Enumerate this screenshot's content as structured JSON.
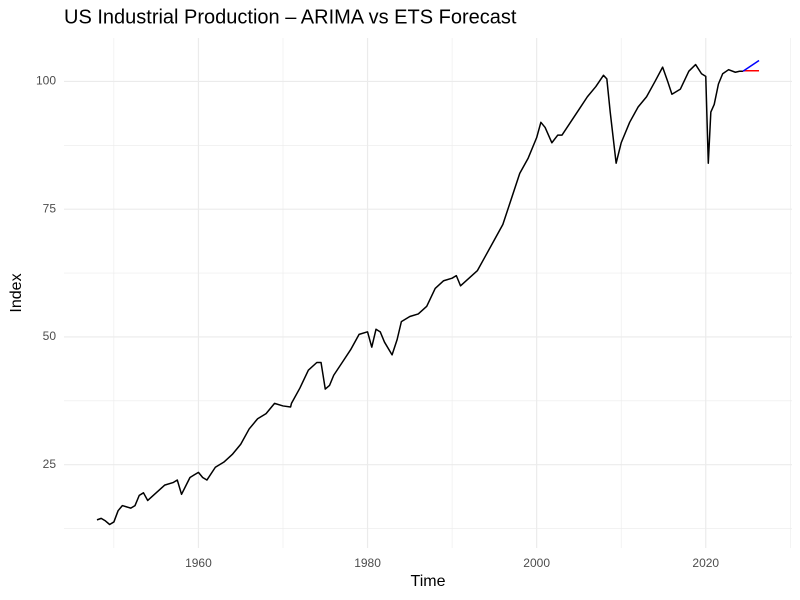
{
  "chart_data": {
    "type": "line",
    "title": "US Industrial Production – ARIMA vs ETS Forecast",
    "x_label": "Time",
    "y_label": "Index",
    "xlim": [
      1944.1,
      2030.2
    ],
    "ylim": [
      8.7,
      108.5
    ],
    "xticks": [
      1960,
      1980,
      2000,
      2020
    ],
    "yticks": [
      25,
      50,
      75,
      100
    ],
    "x_minor_grid": [
      1950,
      1970,
      1990,
      2010,
      2030
    ],
    "y_minor_grid": [
      12.5,
      37.5,
      62.5,
      87.5
    ],
    "grid": true,
    "series": [
      {
        "color": "#000000",
        "x": [
          1948.0,
          1948.5,
          1949.0,
          1949.5,
          1950.0,
          1950.5,
          1951.0,
          1952.0,
          1952.5,
          1953.0,
          1953.5,
          1954.0,
          1955.0,
          1956.0,
          1957.0,
          1957.5,
          1958.0,
          1959.0,
          1959.5,
          1960.0,
          1960.5,
          1961.0,
          1962.0,
          1963.0,
          1964.0,
          1965.0,
          1966.0,
          1967.0,
          1968.0,
          1969.0,
          1970.0,
          1970.9,
          1971.0,
          1972.0,
          1973.0,
          1974.0,
          1974.5,
          1975.0,
          1975.5,
          1976.0,
          1977.0,
          1978.0,
          1979.0,
          1980.0,
          1980.5,
          1981.0,
          1981.5,
          1982.0,
          1982.9,
          1983.5,
          1984.0,
          1985.0,
          1986.0,
          1987.0,
          1988.0,
          1989.0,
          1990.0,
          1990.5,
          1991.0,
          1992.0,
          1993.0,
          1994.0,
          1995.0,
          1996.0,
          1997.0,
          1998.0,
          1999.0,
          2000.0,
          2000.5,
          2001.0,
          2001.8,
          2002.5,
          2003.0,
          2004.0,
          2005.0,
          2006.0,
          2007.0,
          2007.9,
          2008.3,
          2008.7,
          2009.4,
          2010.0,
          2011.0,
          2012.0,
          2013.0,
          2014.0,
          2014.9,
          2015.5,
          2016.0,
          2017.0,
          2018.0,
          2018.8,
          2019.5,
          2020.0,
          2020.3,
          2020.6,
          2021.0,
          2021.5,
          2022.0,
          2022.7,
          2023.5,
          2024.0,
          2024.4
        ],
        "values": [
          14.2,
          14.5,
          14.0,
          13.3,
          13.8,
          16.0,
          17.0,
          16.5,
          17.0,
          19.0,
          19.5,
          18.0,
          19.5,
          21.0,
          21.5,
          22.0,
          19.2,
          22.5,
          23.0,
          23.5,
          22.5,
          22.0,
          24.5,
          25.5,
          27.0,
          29.0,
          32.0,
          34.0,
          35.0,
          37.0,
          36.5,
          36.3,
          37.0,
          40.0,
          43.5,
          45.0,
          45.0,
          39.8,
          40.5,
          42.5,
          45.0,
          47.5,
          50.5,
          51.0,
          48.0,
          51.5,
          51.0,
          49.0,
          46.5,
          49.5,
          53.0,
          54.0,
          54.5,
          56.0,
          59.5,
          61.0,
          61.5,
          62.0,
          60.0,
          61.5,
          63.0,
          66.0,
          69.0,
          72.0,
          77.0,
          82.0,
          85.0,
          89.0,
          92.0,
          91.0,
          88.0,
          89.5,
          89.5,
          92.0,
          94.5,
          97.0,
          99.0,
          101.2,
          100.5,
          94.0,
          84.0,
          88.0,
          92.0,
          95.0,
          97.0,
          100.0,
          102.8,
          100.0,
          97.5,
          98.5,
          102.0,
          103.3,
          101.5,
          101.0,
          84.0,
          94.0,
          95.5,
          99.5,
          101.5,
          102.3,
          101.8,
          102.0,
          102.0
        ]
      },
      {
        "color": "#ff0000",
        "x": [
          2024.4,
          2026.3
        ],
        "values": [
          102.1,
          102.1
        ]
      },
      {
        "color": "#0000ff",
        "x": [
          2024.4,
          2026.3
        ],
        "values": [
          102.0,
          104.1
        ]
      }
    ]
  }
}
